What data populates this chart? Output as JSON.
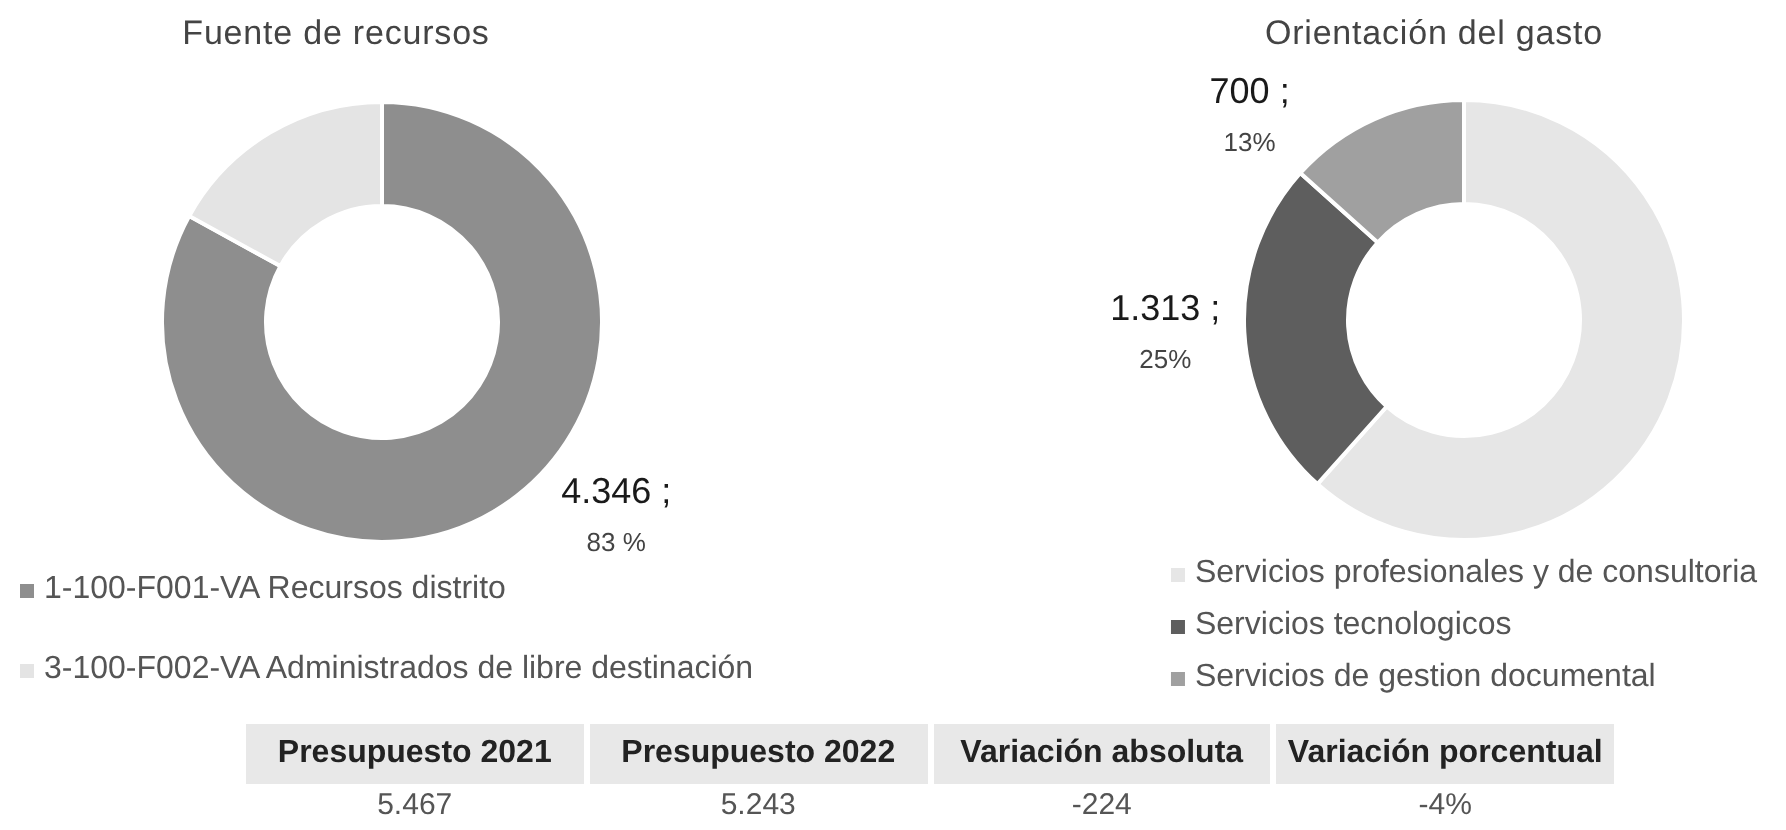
{
  "chart_data": [
    {
      "type": "donut",
      "title": "Fuente de recursos",
      "categories": [
        "1-100-F001-VA Recursos distrito",
        "3-100-F002-VA Administrados de libre destinación"
      ],
      "values": [
        83,
        17
      ],
      "colors": [
        "#8e8e8e",
        "#e4e4e4"
      ],
      "value_labels": [
        "4.346 ;\n83 %",
        null
      ],
      "legend": "bottom left"
    },
    {
      "type": "donut",
      "title": "Orientación del gasto",
      "categories": [
        "Servicios profesionales y de consultoria",
        "Servicios tecnologicos",
        "Servicios de gestion documental"
      ],
      "values": [
        3230,
        1313,
        700
      ],
      "colors": [
        "#e6e6e6",
        "#5e5e5e",
        "#a0a0a0"
      ],
      "value_labels": [
        null,
        "1.313 ;\n25%",
        "700 ;\n13%"
      ],
      "legend": "bottom"
    },
    {
      "type": "other",
      "categories": [
        "Presupuesto 2021",
        "Presupuesto 2022",
        "Variación absoluta",
        "Variación porcentual"
      ],
      "value_labels": [
        "5.467",
        "5.243",
        "-224",
        "-4%"
      ]
    }
  ]
}
